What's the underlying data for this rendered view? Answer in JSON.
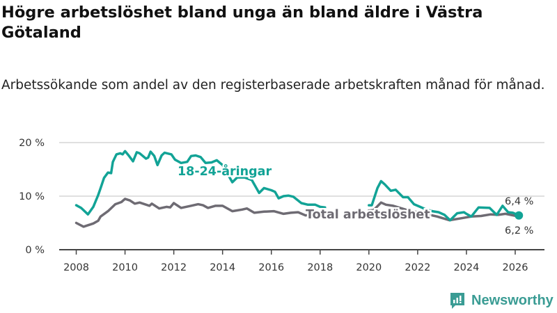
{
  "header": {
    "title": "Högre arbetslöshet bland unga än bland äldre i Västra Götaland",
    "subtitle": "Arbetssökande som andel av den registerbaserade arbetskraften månad för månad."
  },
  "brand": {
    "name": "Newsworthy",
    "icon": "bar-chart-badge-icon",
    "color": "#3a9c94"
  },
  "chart_data": {
    "type": "line",
    "title": "Högre arbetslöshet bland unga än bland äldre i Västra Götaland",
    "xlabel": "",
    "ylabel": "",
    "xlim": [
      2007.3,
      2027.2
    ],
    "ylim": [
      0,
      20
    ],
    "x_ticks": [
      2008,
      2010,
      2012,
      2014,
      2016,
      2018,
      2020,
      2022,
      2024,
      2026
    ],
    "x_tick_labels": [
      "2008",
      "2010",
      "2012",
      "2014",
      "2016",
      "2018",
      "2020",
      "2022",
      "2024",
      "2026"
    ],
    "y_ticks": [
      0,
      10,
      20
    ],
    "y_tick_labels": [
      "0 %",
      "10 %",
      "20 %"
    ],
    "grid": true,
    "series": [
      {
        "name": "18-24-åringar",
        "color": "#12a396",
        "end_label": "6,4 %",
        "points": [
          [
            2008.0,
            8.3
          ],
          [
            2008.2,
            7.8
          ],
          [
            2008.48,
            6.6
          ],
          [
            2008.7,
            8.0
          ],
          [
            2008.9,
            10.2
          ],
          [
            2009.0,
            11.5
          ],
          [
            2009.14,
            13.4
          ],
          [
            2009.3,
            14.4
          ],
          [
            2009.43,
            14.3
          ],
          [
            2009.5,
            16.4
          ],
          [
            2009.65,
            17.8
          ],
          [
            2009.8,
            18.0
          ],
          [
            2009.9,
            17.8
          ],
          [
            2010.0,
            18.4
          ],
          [
            2010.15,
            17.6
          ],
          [
            2010.33,
            16.5
          ],
          [
            2010.48,
            18.2
          ],
          [
            2010.6,
            18.0
          ],
          [
            2010.86,
            17.0
          ],
          [
            2010.95,
            17.2
          ],
          [
            2011.05,
            18.3
          ],
          [
            2011.2,
            17.5
          ],
          [
            2011.33,
            15.8
          ],
          [
            2011.5,
            17.6
          ],
          [
            2011.62,
            18.1
          ],
          [
            2011.9,
            17.8
          ],
          [
            2012.05,
            16.8
          ],
          [
            2012.3,
            16.2
          ],
          [
            2012.55,
            16.4
          ],
          [
            2012.71,
            17.5
          ],
          [
            2012.9,
            17.6
          ],
          [
            2013.1,
            17.3
          ],
          [
            2013.3,
            16.2
          ],
          [
            2013.55,
            16.3
          ],
          [
            2013.76,
            16.7
          ],
          [
            2014.0,
            15.8
          ],
          [
            2014.2,
            14.2
          ],
          [
            2014.4,
            12.6
          ],
          [
            2014.6,
            13.5
          ],
          [
            2014.9,
            13.5
          ],
          [
            2015.2,
            13.0
          ],
          [
            2015.5,
            10.6
          ],
          [
            2015.7,
            11.5
          ],
          [
            2016.0,
            11.1
          ],
          [
            2016.15,
            10.8
          ],
          [
            2016.3,
            9.6
          ],
          [
            2016.5,
            10.0
          ],
          [
            2016.7,
            10.1
          ],
          [
            2016.9,
            9.9
          ],
          [
            2017.23,
            8.7
          ],
          [
            2017.5,
            8.4
          ],
          [
            2017.8,
            8.4
          ],
          [
            2018.0,
            8.0
          ],
          [
            2018.2,
            7.9
          ],
          null,
          [
            2020.0,
            8.3
          ],
          [
            2020.12,
            8.3
          ],
          [
            2020.35,
            11.5
          ],
          [
            2020.5,
            12.8
          ],
          [
            2020.65,
            12.2
          ],
          [
            2020.9,
            11.0
          ],
          [
            2021.1,
            11.2
          ],
          [
            2021.4,
            9.8
          ],
          [
            2021.6,
            9.8
          ],
          [
            2021.85,
            8.5
          ],
          [
            2022.1,
            8.0
          ],
          [
            2022.3,
            7.6
          ],
          [
            2022.6,
            7.2
          ],
          [
            2022.86,
            7.0
          ],
          [
            2023.1,
            6.5
          ],
          [
            2023.33,
            5.5
          ],
          [
            2023.62,
            6.8
          ],
          [
            2023.9,
            7.0
          ],
          [
            2024.0,
            6.7
          ],
          [
            2024.2,
            6.2
          ],
          [
            2024.5,
            7.9
          ],
          [
            2024.95,
            7.8
          ],
          [
            2025.24,
            6.5
          ],
          [
            2025.48,
            8.2
          ],
          [
            2025.71,
            7.0
          ],
          [
            2025.9,
            6.9
          ],
          [
            2026.15,
            6.4
          ]
        ]
      },
      {
        "name": "Total arbetslöshet",
        "color": "#6e6b73",
        "end_label": "6,2 %",
        "points": [
          [
            2008.0,
            5.0
          ],
          [
            2008.3,
            4.3
          ],
          [
            2008.7,
            4.9
          ],
          [
            2008.9,
            5.4
          ],
          [
            2009.0,
            6.2
          ],
          [
            2009.3,
            7.2
          ],
          [
            2009.6,
            8.5
          ],
          [
            2009.85,
            8.9
          ],
          [
            2010.0,
            9.5
          ],
          [
            2010.2,
            9.2
          ],
          [
            2010.4,
            8.6
          ],
          [
            2010.6,
            8.8
          ],
          [
            2011.0,
            8.2
          ],
          [
            2011.1,
            8.6
          ],
          [
            2011.4,
            7.7
          ],
          [
            2011.7,
            8.0
          ],
          [
            2011.85,
            7.9
          ],
          [
            2012.0,
            8.7
          ],
          [
            2012.3,
            7.8
          ],
          [
            2012.7,
            8.2
          ],
          [
            2013.0,
            8.5
          ],
          [
            2013.2,
            8.3
          ],
          [
            2013.4,
            7.8
          ],
          [
            2013.7,
            8.2
          ],
          [
            2014.0,
            8.2
          ],
          [
            2014.4,
            7.2
          ],
          [
            2014.8,
            7.5
          ],
          [
            2015.0,
            7.7
          ],
          [
            2015.3,
            6.9
          ],
          [
            2015.7,
            7.1
          ],
          [
            2016.1,
            7.2
          ],
          [
            2016.5,
            6.7
          ],
          [
            2016.8,
            6.9
          ],
          [
            2017.1,
            7.0
          ],
          [
            2017.4,
            6.4
          ],
          [
            2017.7,
            6.6
          ],
          [
            2018.0,
            6.5
          ],
          [
            2018.2,
            6.4
          ],
          null,
          [
            2020.0,
            7.3
          ],
          [
            2020.2,
            7.4
          ],
          [
            2020.5,
            8.8
          ],
          [
            2020.7,
            8.4
          ],
          [
            2021.0,
            8.2
          ],
          [
            2021.5,
            7.5
          ],
          [
            2022.0,
            7.0
          ],
          [
            2022.4,
            6.6
          ],
          [
            2022.8,
            6.2
          ],
          [
            2023.3,
            5.5
          ],
          [
            2023.7,
            5.8
          ],
          [
            2024.2,
            6.2
          ],
          [
            2024.6,
            6.3
          ],
          [
            2025.0,
            6.6
          ],
          [
            2025.3,
            6.5
          ],
          [
            2025.6,
            6.7
          ],
          [
            2026.15,
            6.2
          ]
        ]
      }
    ],
    "annotations": [
      {
        "text": "18-24-åringar",
        "series": 0
      },
      {
        "text": "Total arbetslöshet",
        "series": 1
      }
    ]
  }
}
